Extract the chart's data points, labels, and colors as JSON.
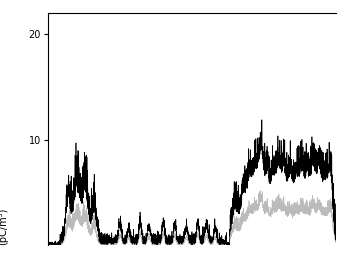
{
  "title": "",
  "ylabel": "(pC/m³)",
  "xlabel": "",
  "ylim": [
    0,
    22
  ],
  "yticks": [
    10,
    20
  ],
  "n_points": 3000,
  "background_color": "#ffffff",
  "line_color1": "#000000",
  "line_color2": "#bbbbbb",
  "linewidth": 0.5,
  "ylabel_fontsize": 7,
  "tick_fontsize": 7
}
